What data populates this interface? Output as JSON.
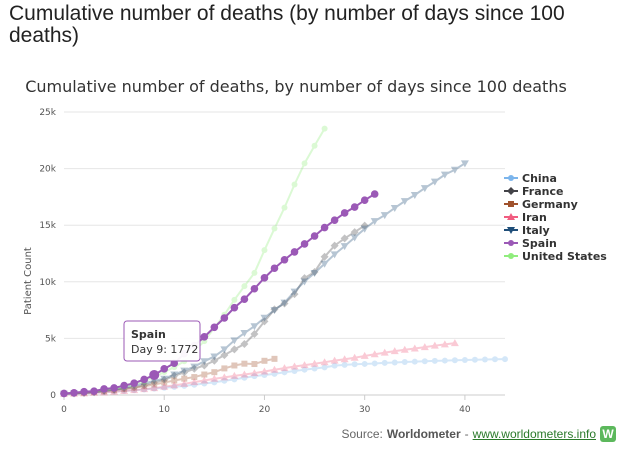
{
  "page_title": "Cumulative number of deaths (by number of days since 100 deaths)",
  "source": {
    "label": "Source: ",
    "name": "Worldometer",
    "separator": " - ",
    "link": "www.worldometers.info",
    "logo_letter": "W"
  },
  "tooltip": {
    "title": "Spain",
    "text": "Day 9: 1772"
  },
  "chart_data": {
    "type": "line",
    "title": "Cumulative number of deaths, by number of days since 100 deaths",
    "xlabel": "",
    "ylabel": "Patient Count",
    "xlim": [
      0,
      44
    ],
    "ylim": [
      0,
      25000
    ],
    "x_ticks": [
      "0",
      "10",
      "20",
      "30",
      "40"
    ],
    "x_tick_values": [
      0,
      10,
      20,
      30,
      40
    ],
    "y_ticks": [
      "0",
      "5k",
      "10k",
      "15k",
      "20k",
      "25k"
    ],
    "y_tick_values": [
      0,
      5000,
      10000,
      15000,
      20000,
      25000
    ],
    "grid": true,
    "legend_position": "right",
    "highlight": {
      "series": "Spain",
      "x": 9,
      "y": 1772
    },
    "series": [
      {
        "name": "China",
        "color": "#7cb5ec",
        "marker": "circle",
        "faded": true,
        "values": [
          106,
          132,
          170,
          213,
          259,
          304,
          361,
          425,
          490,
          563,
          637,
          722,
          811,
          908,
          1016,
          1113,
          1259,
          1380,
          1523,
          1665,
          1770,
          1868,
          2004,
          2118,
          2236,
          2345,
          2442,
          2592,
          2663,
          2715,
          2744,
          2788,
          2835,
          2870,
          2912,
          2943,
          2981,
          3012,
          3042,
          3070,
          3097,
          3119,
          3136,
          3158,
          3169
        ]
      },
      {
        "name": "France",
        "color": "#434348",
        "marker": "diamond",
        "faded": true,
        "values": [
          127,
          148,
          175,
          264,
          372,
          450,
          562,
          674,
          860,
          1100,
          1331,
          1696,
          1995,
          2314,
          2606,
          3024,
          3523,
          4032,
          4503,
          5387,
          6507,
          7560,
          8078,
          8911,
          10328,
          10869,
          12210,
          13197,
          13832,
          14393,
          14967
        ]
      },
      {
        "name": "Germany",
        "color": "#a0522d",
        "marker": "square",
        "faded": true,
        "values": [
          123,
          157,
          206,
          267,
          342,
          433,
          533,
          645,
          775,
          931,
          1107,
          1275,
          1444,
          1584,
          1810,
          2016,
          2349,
          2607,
          2767,
          2736,
          3022,
          3194
        ]
      },
      {
        "name": "Iran",
        "color": "#f15c80",
        "marker": "triangle",
        "faded": true,
        "values": [
          107,
          124,
          145,
          194,
          237,
          291,
          354,
          429,
          514,
          611,
          724,
          853,
          988,
          1135,
          1284,
          1433,
          1556,
          1685,
          1812,
          1934,
          2077,
          2234,
          2378,
          2517,
          2640,
          2757,
          2898,
          3036,
          3160,
          3294,
          3452,
          3603,
          3739,
          3872,
          3993,
          4110,
          4232,
          4357,
          4474,
          4585
        ]
      },
      {
        "name": "Italy",
        "color": "#1f4e79",
        "marker": "triangle-down",
        "faded": true,
        "values": [
          107,
          148,
          197,
          233,
          366,
          463,
          631,
          827,
          1016,
          1266,
          1441,
          1809,
          2158,
          2503,
          2978,
          3405,
          4032,
          4825,
          5476,
          6077,
          6820,
          7503,
          8165,
          9134,
          10023,
          10779,
          11591,
          12428,
          13155,
          13915,
          14681,
          15362,
          15887,
          16523,
          17127,
          17669,
          18279,
          18849,
          19468,
          19899,
          20465
        ]
      },
      {
        "name": "Spain",
        "color": "#9b59b6",
        "marker": "circle",
        "faded": false,
        "values": [
          136,
          195,
          289,
          342,
          533,
          623,
          830,
          1043,
          1375,
          1772,
          2311,
          2808,
          3647,
          4365,
          5138,
          5982,
          6803,
          7716,
          8464,
          9387,
          10348,
          11198,
          11947,
          12641,
          13341,
          14045,
          14792,
          15447,
          16081,
          16606,
          17209,
          17756
        ]
      },
      {
        "name": "United States",
        "color": "#90ed7d",
        "marker": "circle",
        "faded": true,
        "values": [
          150,
          205,
          264,
          326,
          427,
          537,
          706,
          942,
          1209,
          1581,
          2026,
          2467,
          2978,
          3873,
          4757,
          5926,
          7087,
          8407,
          9619,
          10783,
          12794,
          14704,
          16553,
          18595,
          20463,
          22020,
          23529
        ]
      }
    ]
  }
}
